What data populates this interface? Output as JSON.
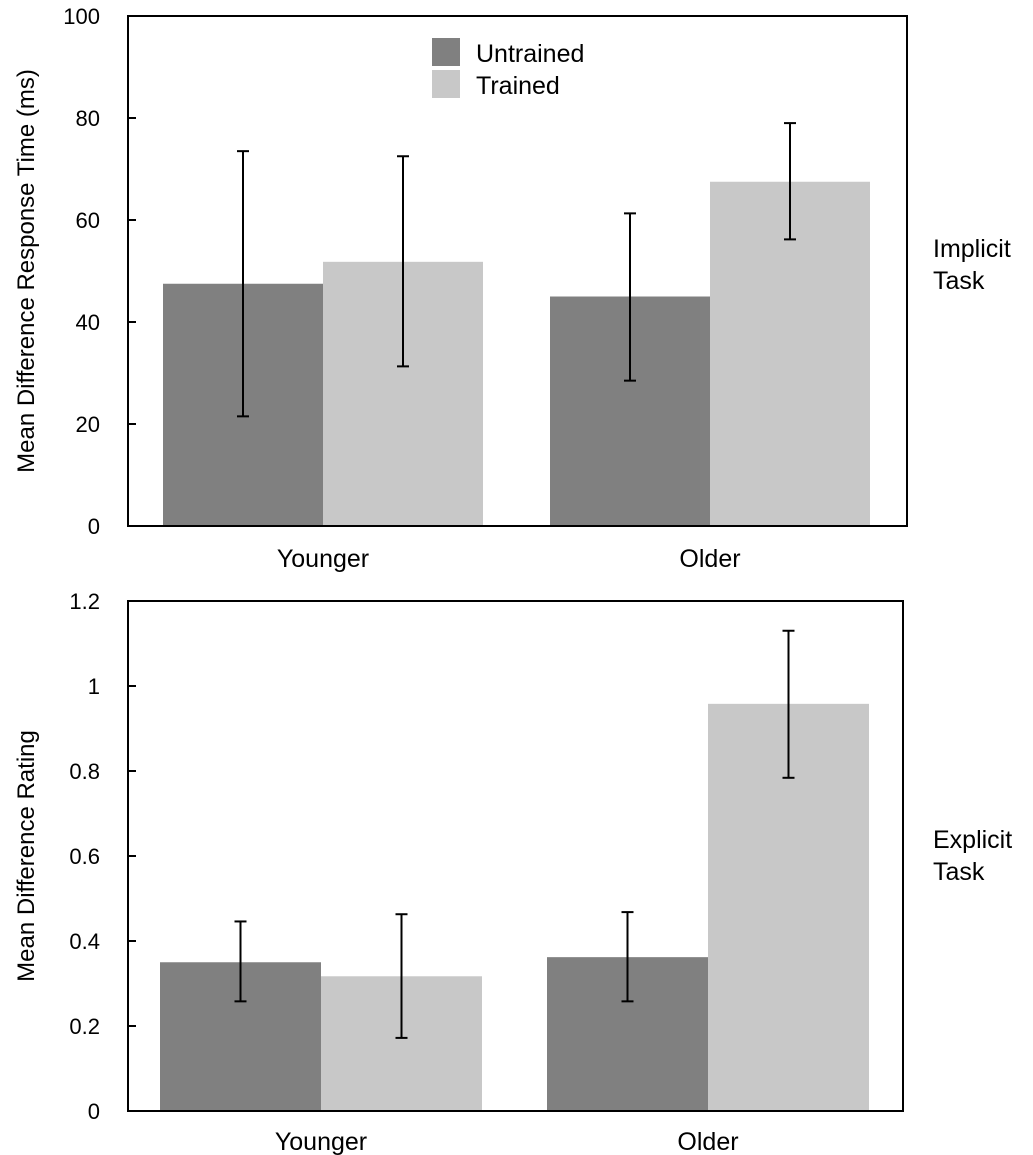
{
  "colors": {
    "untrained": "#808080",
    "trained": "#c8c8c8",
    "axis": "#000000",
    "background": "#ffffff"
  },
  "chart_data": [
    {
      "type": "bar",
      "panel_label": "Implicit\nTask",
      "ylabel": "Mean Difference Response Time (ms)",
      "xlabel": "",
      "categories": [
        "Younger",
        "Older"
      ],
      "ylim": [
        0,
        100
      ],
      "yticks": [
        "0",
        "20",
        "40",
        "60",
        "80",
        "100"
      ],
      "ytick_values": [
        0,
        20,
        40,
        60,
        80,
        100
      ],
      "grid": false,
      "legend": {
        "placement": "top-center",
        "entries": [
          "Untrained",
          "Trained"
        ]
      },
      "series": [
        {
          "name": "Untrained",
          "values": [
            47.5,
            45
          ],
          "error_low": [
            21.5,
            28.5
          ],
          "error_high": [
            73.5,
            61.3
          ]
        },
        {
          "name": "Trained",
          "values": [
            51.8,
            67.5
          ],
          "error_low": [
            31.3,
            56.2
          ],
          "error_high": [
            72.5,
            79
          ]
        }
      ]
    },
    {
      "type": "bar",
      "panel_label": "Explicit\nTask",
      "ylabel": "Mean Difference Rating",
      "xlabel": "",
      "categories": [
        "Younger",
        "Older"
      ],
      "ylim": [
        0,
        1.2
      ],
      "yticks": [
        "0",
        "0.2",
        "0.4",
        "0.6",
        "0.8",
        "1",
        "1.2"
      ],
      "ytick_values": [
        0,
        0.2,
        0.4,
        0.6,
        0.8,
        1,
        1.2
      ],
      "grid": false,
      "legend": null,
      "series": [
        {
          "name": "Untrained",
          "values": [
            0.35,
            0.362
          ],
          "error_low": [
            0.258,
            0.258
          ],
          "error_high": [
            0.446,
            0.468
          ]
        },
        {
          "name": "Trained",
          "values": [
            0.317,
            0.958
          ],
          "error_low": [
            0.172,
            0.784
          ],
          "error_high": [
            0.463,
            1.13
          ]
        }
      ]
    }
  ]
}
